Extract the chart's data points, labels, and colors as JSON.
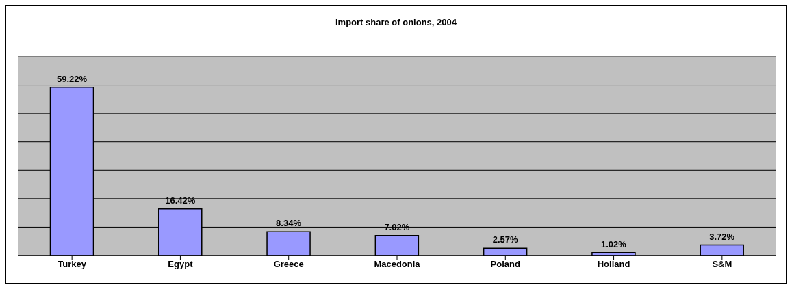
{
  "chart_data": {
    "type": "bar",
    "title": "Import share of onions, 2004",
    "categories": [
      "Turkey",
      "Egypt",
      "Greece",
      "Macedonia",
      "Poland",
      "Holland",
      "S&M"
    ],
    "values": [
      59.22,
      16.42,
      8.34,
      7.02,
      2.57,
      1.02,
      3.72
    ],
    "value_labels": [
      "59.22%",
      "16.42%",
      "8.34%",
      "7.02%",
      "2.57%",
      "1.02%",
      "3.72%"
    ],
    "color": "#9999ff",
    "ylim": [
      0,
      70
    ],
    "yticks": [
      {
        "value": 0,
        "label": null
      },
      {
        "value": 10,
        "label": null
      },
      {
        "value": 20,
        "label": null
      },
      {
        "value": 30,
        "label": null
      },
      {
        "value": 40,
        "label": null
      },
      {
        "value": 50,
        "label": null
      },
      {
        "value": 60,
        "label": null
      },
      {
        "value": 70,
        "label": null
      }
    ],
    "grid": "y",
    "tick_labels": "x"
  }
}
